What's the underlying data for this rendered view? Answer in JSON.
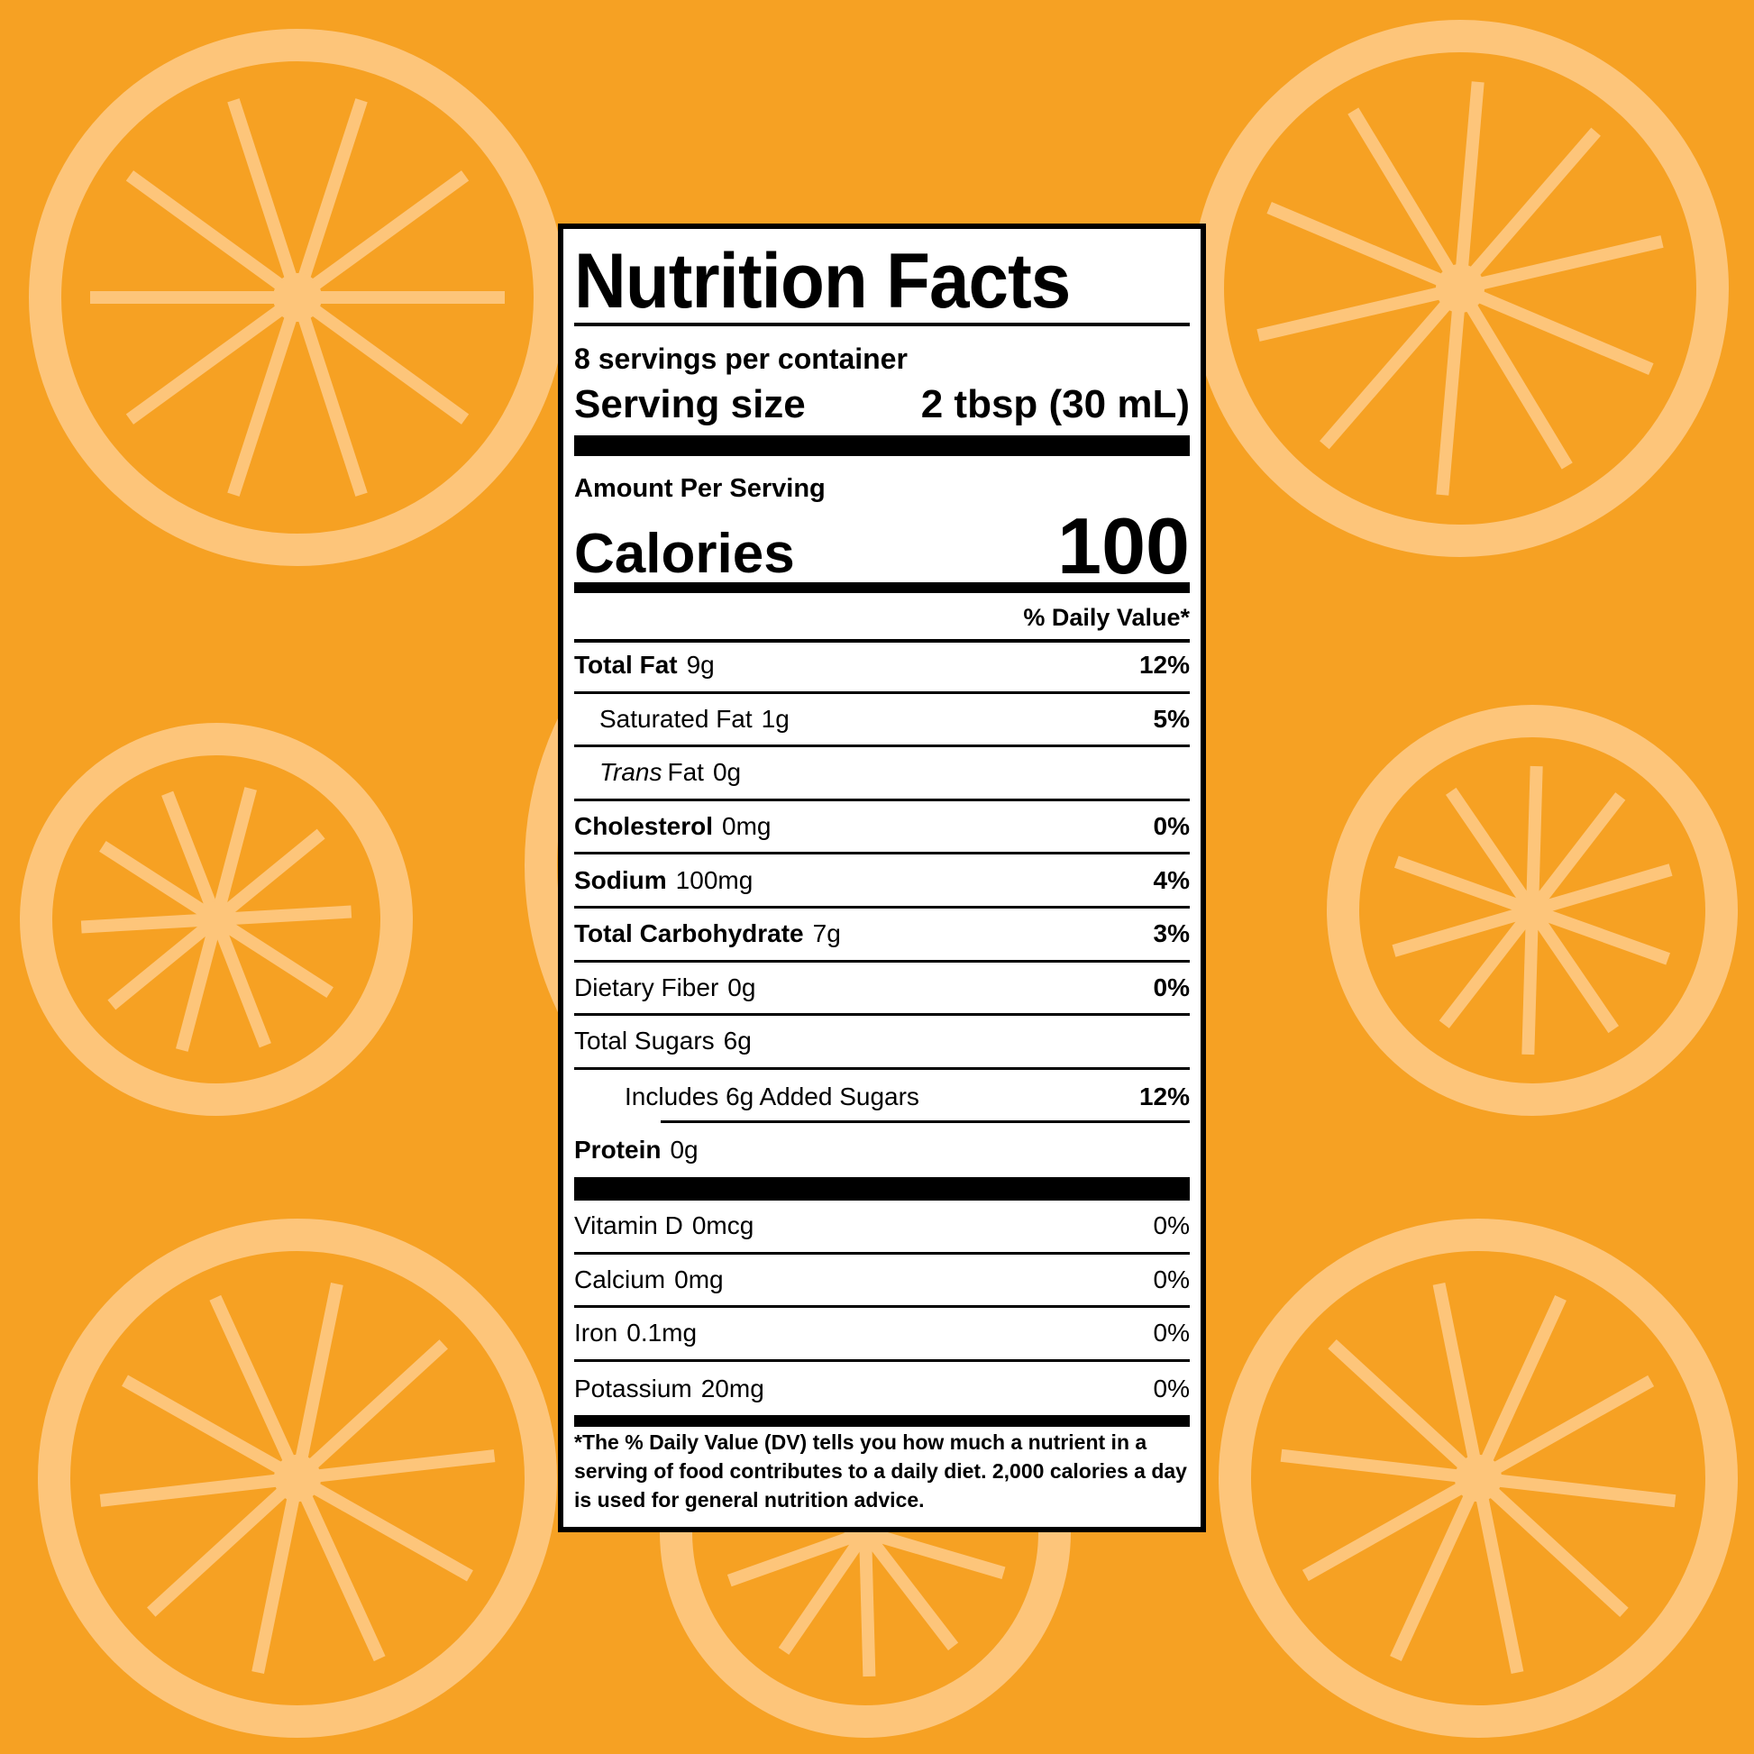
{
  "colors": {
    "background": "#F6A123",
    "slice_light": "#FDC57A",
    "label_bg": "#FFFFFF",
    "ink": "#000000"
  },
  "label": {
    "title": "Nutrition Facts",
    "servings": "8 servings per container",
    "serving_size_label": "Serving size",
    "serving_size_value": "2 tbsp (30 mL)",
    "amount_per_serving": "Amount Per Serving",
    "calories_label": "Calories",
    "calories_value": "100",
    "dv_header": "% Daily Value*",
    "nutrients": [
      {
        "name": "Total Fat",
        "amount": "9g",
        "dv": "12%",
        "bold": true,
        "indent": 0
      },
      {
        "name": "Saturated Fat",
        "amount": "1g",
        "dv": "5%",
        "bold": false,
        "indent": 1
      },
      {
        "name": "Trans",
        "name_suffix": "Fat",
        "amount": "0g",
        "dv": "",
        "bold": false,
        "indent": 1,
        "italic": true
      },
      {
        "name": "Cholesterol",
        "amount": "0mg",
        "dv": "0%",
        "bold": true,
        "indent": 0
      },
      {
        "name": "Sodium",
        "amount": "100mg",
        "dv": "4%",
        "bold": true,
        "indent": 0
      },
      {
        "name": "Total Carbohydrate",
        "amount": "7g",
        "dv": "3%",
        "bold": true,
        "indent": 0
      },
      {
        "name": "Dietary Fiber",
        "amount": "0g",
        "dv": "0%",
        "bold": false,
        "indent": 0
      },
      {
        "name": "Total Sugars",
        "amount": "6g",
        "dv": "",
        "bold": false,
        "indent": 0
      },
      {
        "name": "Includes 6g Added Sugars",
        "amount": "",
        "dv": "12%",
        "bold": false,
        "indent": 2
      },
      {
        "name": "Protein",
        "amount": "0g",
        "dv": "",
        "bold": true,
        "indent": 0,
        "last": true
      }
    ],
    "vitamins": [
      {
        "name": "Vitamin D",
        "amount": "0mcg",
        "dv": "0%"
      },
      {
        "name": "Calcium",
        "amount": "0mg",
        "dv": "0%"
      },
      {
        "name": "Iron",
        "amount": "0.1mg",
        "dv": "0%"
      },
      {
        "name": "Potassium",
        "amount": "20mg",
        "dv": "0%"
      }
    ],
    "footnote": "*The % Daily Value (DV) tells you how much a nutrient in a serving of food contributes to a daily diet. 2,000 calories a day is used for general nutrition advice."
  }
}
